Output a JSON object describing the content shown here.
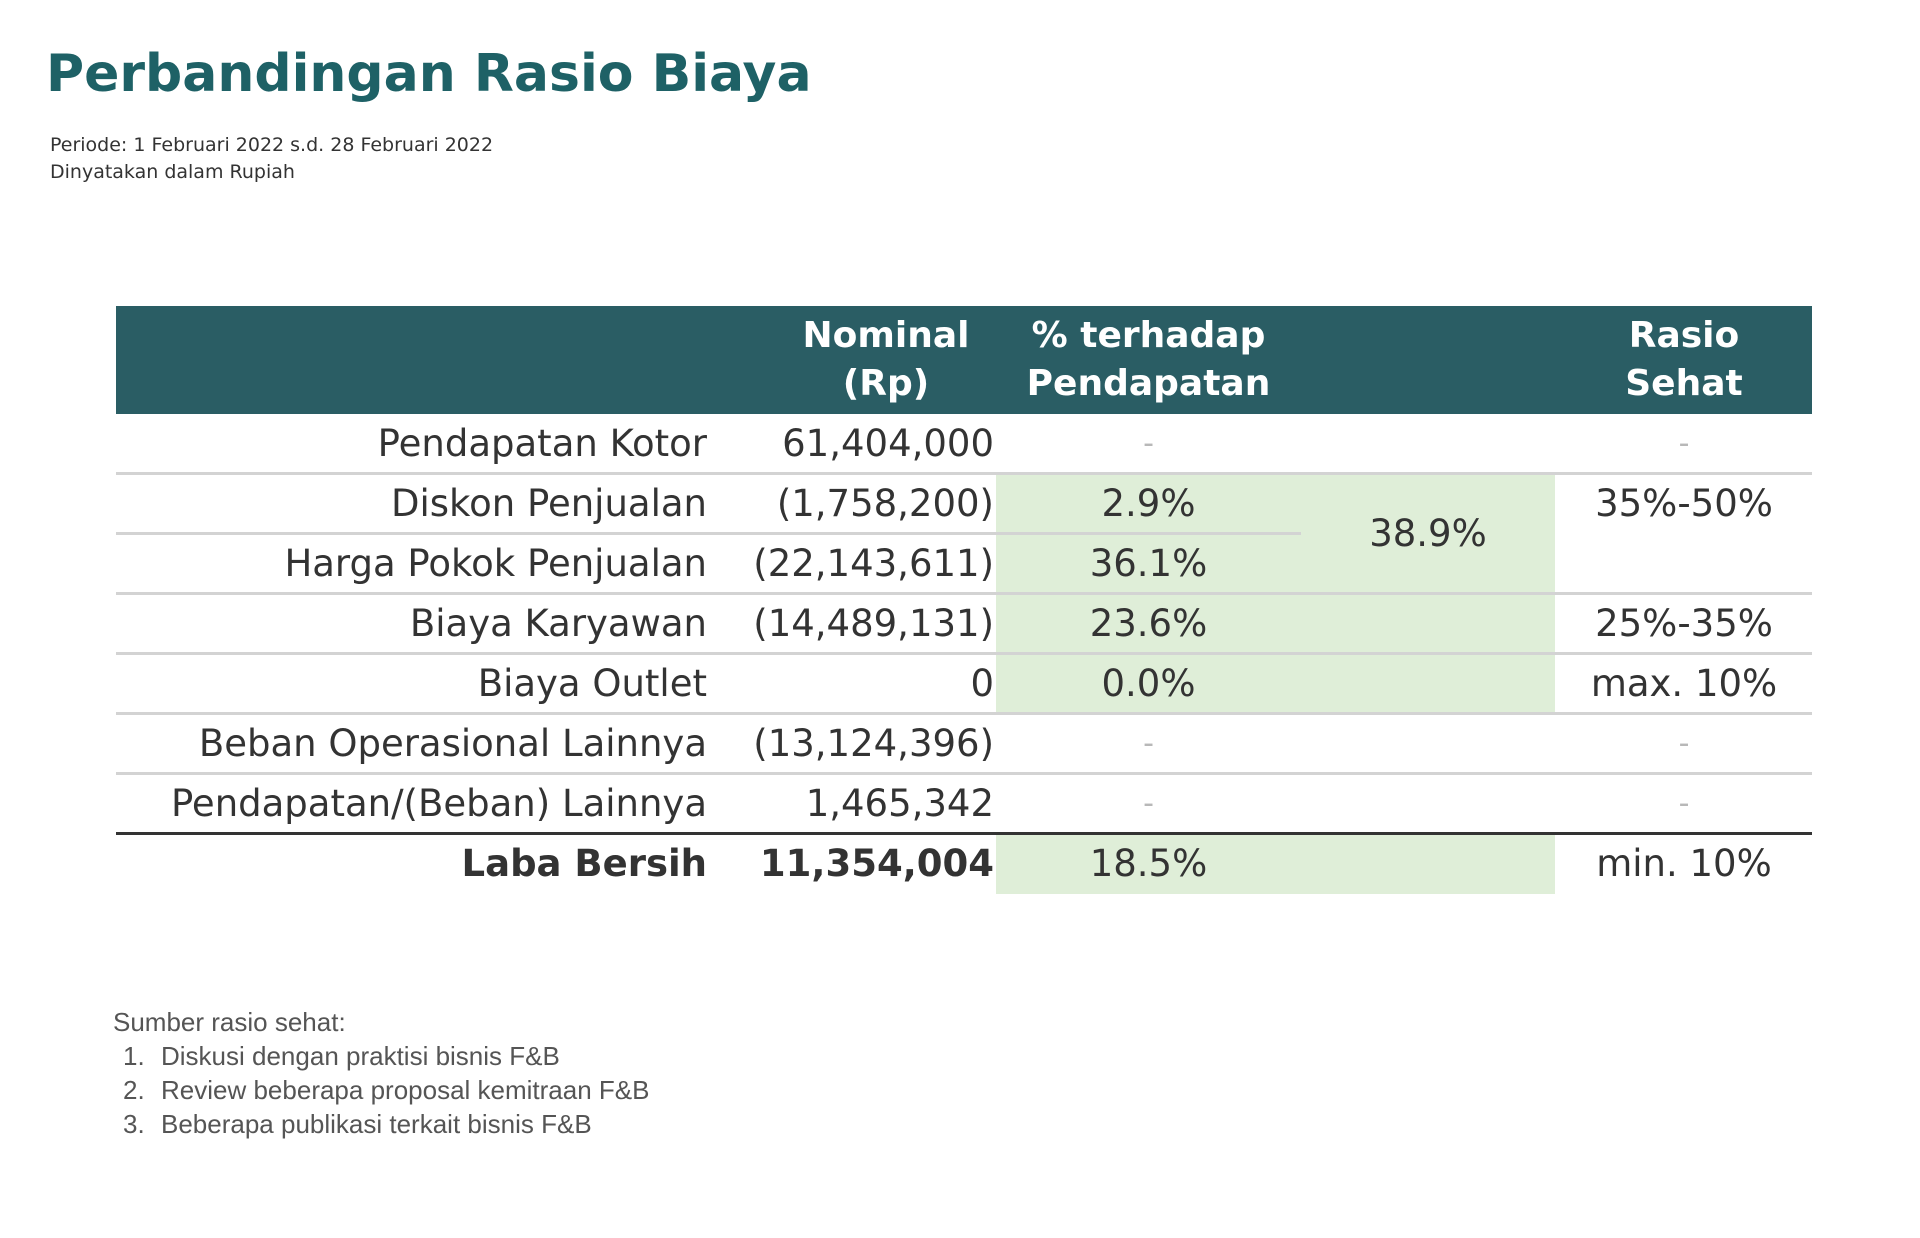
{
  "title": "Perbandingan Rasio Biaya",
  "period": "Periode: 1 Februari 2022 s.d. 28 Februari 2022",
  "currency_note": "Dinyatakan dalam Rupiah",
  "table": {
    "headers": {
      "nominal": [
        "Nominal",
        "(Rp)"
      ],
      "percent": [
        "% terhadap",
        "Pendapatan"
      ],
      "healthy": [
        "Rasio",
        "Sehat"
      ]
    },
    "rows": [
      {
        "label": "Pendapatan Kotor",
        "nominal": "61,404,000",
        "percent": "-",
        "healthy": "-"
      },
      {
        "label": "Diskon Penjualan",
        "nominal": "(1,758,200)",
        "percent": "2.9%",
        "healthy": "35%-50%"
      },
      {
        "label": "Harga Pokok Penjualan",
        "nominal": "(22,143,611)",
        "percent": "36.1%",
        "healthy": ""
      },
      {
        "label": "Biaya Karyawan",
        "nominal": "(14,489,131)",
        "percent": "23.6%",
        "healthy": "25%-35%"
      },
      {
        "label": "Biaya Outlet",
        "nominal": "0",
        "percent": "0.0%",
        "healthy": "max. 10%"
      },
      {
        "label": "Beban Operasional Lainnya",
        "nominal": "(13,124,396)",
        "percent": "-",
        "healthy": "-"
      },
      {
        "label": "Pendapatan/(Beban) Lainnya",
        "nominal": "1,465,342",
        "percent": "-",
        "healthy": "-"
      },
      {
        "label": "Laba Bersih",
        "nominal": "11,354,004",
        "percent": "18.5%",
        "healthy": "min. 10%"
      }
    ],
    "combined_percent": "38.9%"
  },
  "notes": {
    "title": "Sumber rasio sehat:",
    "items": [
      "Diskusi dengan praktisi bisnis F&B",
      "Review beberapa proposal kemitraan F&B",
      "Beberapa publikasi terkait bisnis F&B"
    ]
  },
  "colors": {
    "title": "#1e6166",
    "header_bg": "#2a5d64",
    "highlight": "#dfeed8"
  }
}
